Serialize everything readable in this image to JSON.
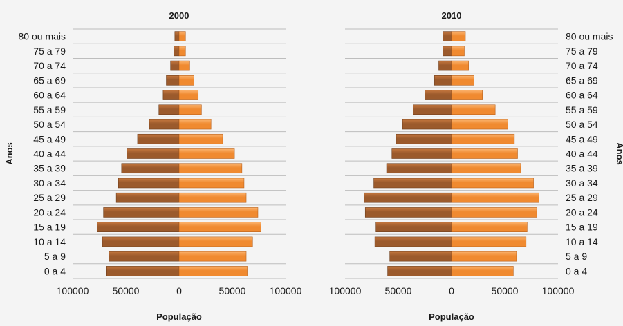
{
  "colors": {
    "male_bar": "#9b5a2c",
    "male_bar_light": "#c4773e",
    "female_bar": "#f08a30",
    "female_bar_light": "#fbb36e",
    "gridline": "#bdbdbd",
    "text": "#1a1a1a"
  },
  "chart_data": [
    {
      "type": "bar",
      "orientation": "horizontal",
      "title": "2000",
      "xlabel": "População",
      "ylabel": "Anos",
      "ylabel_position": "left",
      "categories": [
        "0 a 4",
        "5 a 9",
        "10 a 14",
        "15 a 19",
        "20 a 24",
        "25 a 29",
        "30 a 34",
        "35 a 39",
        "40 a 44",
        "45 a 49",
        "50 a 54",
        "55 a 59",
        "60 a 64",
        "65 a 69",
        "70 a 74",
        "75 a 79",
        "80 ou mais"
      ],
      "series": [
        {
          "values": [
            -68000,
            -66000,
            -72000,
            -77000,
            -71000,
            -59000,
            -57000,
            -54000,
            -49000,
            -39000,
            -28000,
            -19000,
            -15000,
            -12000,
            -8000,
            -5000,
            -4000
          ]
        },
        {
          "values": [
            64000,
            63000,
            69000,
            77000,
            74000,
            63000,
            61000,
            59000,
            52000,
            41000,
            30000,
            21000,
            18000,
            14000,
            10000,
            6000,
            6000
          ]
        }
      ],
      "xlim": [
        -100000,
        100000
      ],
      "xticks": [
        -100000,
        -50000,
        0,
        50000,
        100000
      ],
      "xtick_labels": [
        "100000",
        "50000",
        "0",
        "50000",
        "100000"
      ],
      "grid": true
    },
    {
      "type": "bar",
      "orientation": "horizontal",
      "title": "2010",
      "xlabel": "População",
      "ylabel": "Anos",
      "ylabel_position": "right",
      "categories": [
        "0 a 4",
        "5 a 9",
        "10 a 14",
        "15 a 19",
        "20 a 24",
        "25 a 29",
        "30 a 34",
        "35 a 39",
        "40 a 44",
        "45 a 49",
        "50 a 54",
        "55 a 59",
        "60 a 64",
        "65 a 69",
        "70 a 74",
        "75 a 79",
        "80 ou mais"
      ],
      "series": [
        {
          "values": [
            -60000,
            -58000,
            -72000,
            -71000,
            -81000,
            -82000,
            -73000,
            -61000,
            -56000,
            -52000,
            -46000,
            -36000,
            -25000,
            -16000,
            -12000,
            -8000,
            -8000
          ]
        },
        {
          "values": [
            58000,
            61000,
            70000,
            71000,
            80000,
            82000,
            77000,
            65000,
            62000,
            59000,
            53000,
            41000,
            29000,
            21000,
            16000,
            12000,
            13000
          ]
        }
      ],
      "xlim": [
        -100000,
        100000
      ],
      "xticks": [
        -100000,
        -50000,
        0,
        50000,
        100000
      ],
      "xtick_labels": [
        "100000",
        "50000",
        "0",
        "50000",
        "100000"
      ],
      "grid": true
    }
  ]
}
